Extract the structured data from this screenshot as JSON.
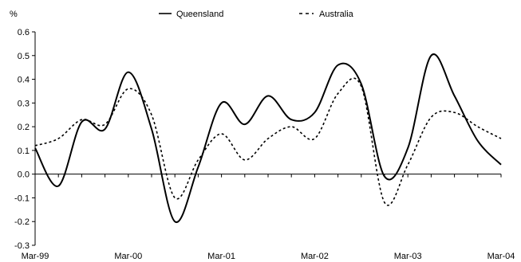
{
  "chart_data": {
    "type": "line",
    "title": "",
    "xlabel": "",
    "ylabel": "%",
    "ylim": [
      -0.3,
      0.6
    ],
    "y_ticks": [
      "0.6",
      "0.5",
      "0.4",
      "0.3",
      "0.2",
      "0.1",
      "0.0",
      "-0.1",
      "-0.2",
      "-0.3"
    ],
    "x_tick_labels": [
      "Mar-99",
      "Mar-00",
      "Mar-01",
      "Mar-02",
      "Mar-03",
      "Mar-04"
    ],
    "grid": false,
    "legend_position": "top",
    "x": [
      "Mar-99",
      "Jun-99",
      "Sep-99",
      "Dec-99",
      "Mar-00",
      "Jun-00",
      "Sep-00",
      "Dec-00",
      "Mar-01",
      "Jun-01",
      "Sep-01",
      "Dec-01",
      "Mar-02",
      "Jun-02",
      "Sep-02",
      "Dec-02",
      "Mar-03",
      "Jun-03",
      "Sep-03",
      "Dec-03",
      "Mar-04"
    ],
    "series": [
      {
        "name": "Queensland",
        "style": "solid",
        "color": "#000000",
        "values": [
          0.11,
          -0.05,
          0.22,
          0.19,
          0.43,
          0.19,
          -0.2,
          0.03,
          0.3,
          0.21,
          0.33,
          0.23,
          0.26,
          0.46,
          0.38,
          -0.01,
          0.11,
          0.5,
          0.33,
          0.14,
          0.04
        ]
      },
      {
        "name": "Australia",
        "style": "dashed",
        "color": "#000000",
        "values": [
          0.12,
          0.15,
          0.23,
          0.21,
          0.36,
          0.25,
          -0.1,
          0.06,
          0.17,
          0.06,
          0.15,
          0.2,
          0.15,
          0.34,
          0.37,
          -0.12,
          0.04,
          0.24,
          0.26,
          0.2,
          0.15
        ]
      }
    ]
  }
}
